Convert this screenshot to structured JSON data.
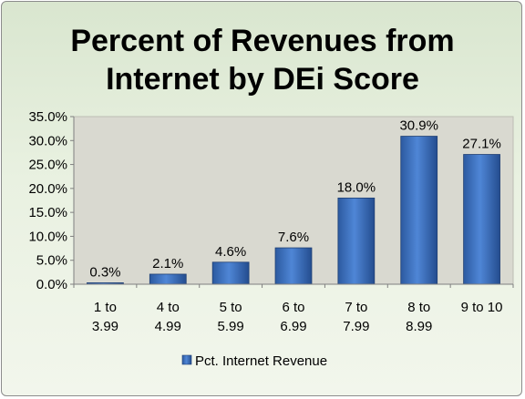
{
  "chart_data": {
    "type": "bar",
    "title": "Percent of Revenues from\nInternet  by DEi Score",
    "categories": [
      [
        "1 to",
        "3.99"
      ],
      [
        "4 to",
        "4.99"
      ],
      [
        "5 to",
        "5.99"
      ],
      [
        "6 to",
        "6.99"
      ],
      [
        "7 to",
        "7.99"
      ],
      [
        "8 to",
        "8.99"
      ],
      [
        "9 to 10"
      ]
    ],
    "series": [
      {
        "name": "Pct. Internet Revenue",
        "values": [
          0.3,
          2.1,
          4.6,
          7.6,
          18.0,
          30.9,
          27.1
        ],
        "labels": [
          "0.3%",
          "2.1%",
          "4.6%",
          "7.6%",
          "18.0%",
          "30.9%",
          "27.1%"
        ],
        "color": "#3d72bf"
      }
    ],
    "ylim": [
      0,
      35
    ],
    "yticks": [
      "0.0%",
      "5.0%",
      "10.0%",
      "15.0%",
      "20.0%",
      "25.0%",
      "30.0%",
      "35.0%"
    ],
    "xlabel": "",
    "ylabel": "",
    "legend_position": "bottom",
    "grid": false,
    "colors": {
      "bar": "#3d72bf",
      "plot_bg": "#d8d8cf",
      "frame_bg": "#e3ecd9"
    }
  }
}
